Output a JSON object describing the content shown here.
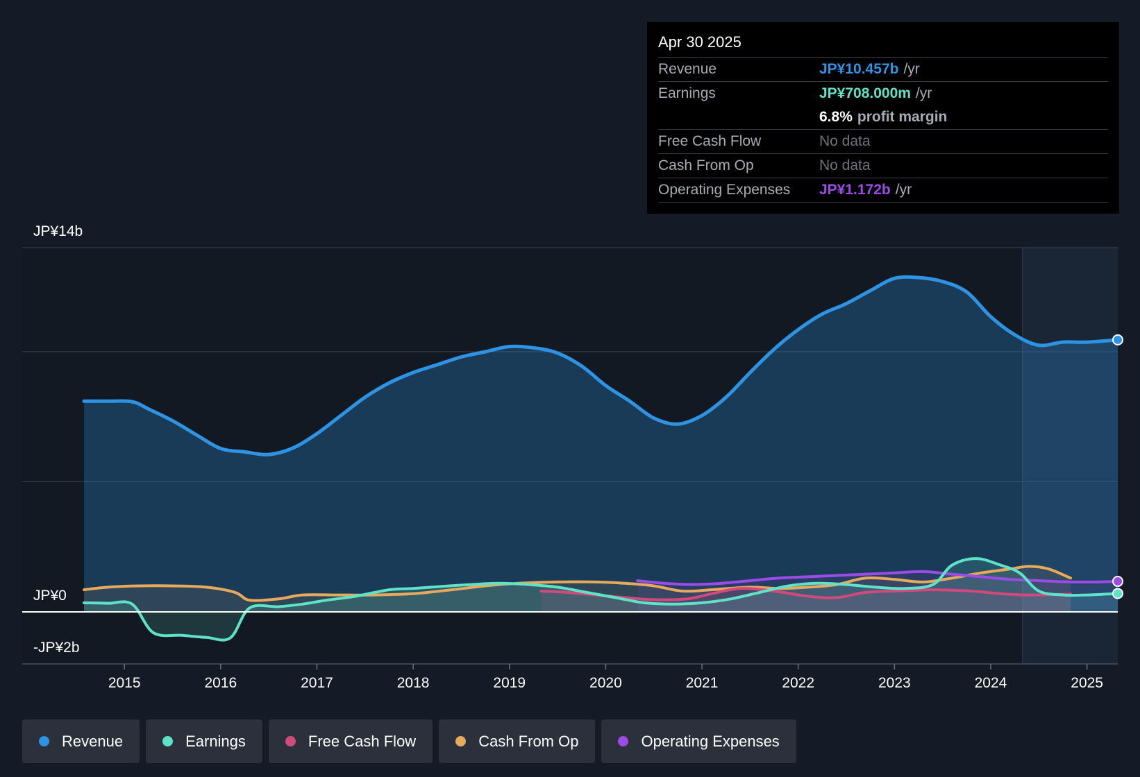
{
  "tooltip": {
    "date": "Apr 30 2025",
    "revenue_label": "Revenue",
    "revenue_value": "JP¥10.457b",
    "revenue_unit": "/yr",
    "earnings_label": "Earnings",
    "earnings_value": "JP¥708.000m",
    "earnings_unit": "/yr",
    "margin_value": "6.8%",
    "margin_text": "profit margin",
    "fcf_label": "Free Cash Flow",
    "fcf_value": "No data",
    "cfo_label": "Cash From Op",
    "cfo_value": "No data",
    "opex_label": "Operating Expenses",
    "opex_value": "JP¥1.172b",
    "opex_unit": "/yr"
  },
  "legend": {
    "revenue": "Revenue",
    "earnings": "Earnings",
    "fcf": "Free Cash Flow",
    "cfo": "Cash From Op",
    "opex": "Operating Expenses"
  },
  "colors": {
    "revenue": "#2e93e3",
    "earnings": "#5fe3c8",
    "fcf": "#d04a7c",
    "cfo": "#e7aa5c",
    "opex": "#9b4be6",
    "background": "#151b26"
  },
  "chart_data": {
    "type": "line",
    "title": "",
    "xlabel": "",
    "ylabel": "",
    "ylim": [
      -2,
      14
    ],
    "xlim": [
      2014.4,
      2025.32
    ],
    "y_tick_labels": [
      {
        "value": 14,
        "label": "JP¥14b"
      },
      {
        "value": 0,
        "label": "JP¥0"
      },
      {
        "value": -2,
        "label": "-JP¥2b"
      }
    ],
    "x_ticks": [
      2015,
      2016,
      2017,
      2018,
      2019,
      2020,
      2021,
      2022,
      2023,
      2024,
      2025
    ],
    "x_tick_labels": [
      "2015",
      "2016",
      "2017",
      "2018",
      "2019",
      "2020",
      "2021",
      "2022",
      "2023",
      "2024",
      "2025"
    ],
    "forecast_start": 2024.33,
    "series": [
      {
        "name": "Revenue",
        "key": "revenue",
        "points": [
          [
            2014.58,
            8.1
          ],
          [
            2014.83,
            8.1
          ],
          [
            2015.08,
            8.08
          ],
          [
            2015.25,
            7.8
          ],
          [
            2015.5,
            7.35
          ],
          [
            2015.75,
            6.8
          ],
          [
            2016.0,
            6.28
          ],
          [
            2016.25,
            6.15
          ],
          [
            2016.5,
            6.05
          ],
          [
            2016.75,
            6.3
          ],
          [
            2017.0,
            6.85
          ],
          [
            2017.25,
            7.55
          ],
          [
            2017.5,
            8.25
          ],
          [
            2017.75,
            8.8
          ],
          [
            2018.0,
            9.2
          ],
          [
            2018.25,
            9.5
          ],
          [
            2018.5,
            9.8
          ],
          [
            2018.75,
            10.0
          ],
          [
            2019.0,
            10.2
          ],
          [
            2019.25,
            10.15
          ],
          [
            2019.5,
            9.95
          ],
          [
            2019.75,
            9.45
          ],
          [
            2020.0,
            8.7
          ],
          [
            2020.25,
            8.1
          ],
          [
            2020.5,
            7.45
          ],
          [
            2020.75,
            7.22
          ],
          [
            2021.0,
            7.55
          ],
          [
            2021.25,
            8.25
          ],
          [
            2021.5,
            9.2
          ],
          [
            2021.75,
            10.1
          ],
          [
            2022.0,
            10.85
          ],
          [
            2022.25,
            11.45
          ],
          [
            2022.5,
            11.85
          ],
          [
            2022.75,
            12.35
          ],
          [
            2023.0,
            12.82
          ],
          [
            2023.25,
            12.85
          ],
          [
            2023.5,
            12.7
          ],
          [
            2023.75,
            12.3
          ],
          [
            2024.0,
            11.35
          ],
          [
            2024.25,
            10.65
          ],
          [
            2024.5,
            10.25
          ],
          [
            2024.75,
            10.37
          ],
          [
            2025.0,
            10.37
          ],
          [
            2025.32,
            10.457
          ]
        ]
      },
      {
        "name": "Earnings",
        "key": "earnings",
        "points": [
          [
            2014.58,
            0.35
          ],
          [
            2014.83,
            0.33
          ],
          [
            2015.08,
            0.3
          ],
          [
            2015.3,
            -0.8
          ],
          [
            2015.6,
            -0.9
          ],
          [
            2015.85,
            -0.98
          ],
          [
            2016.1,
            -1.0
          ],
          [
            2016.3,
            0.15
          ],
          [
            2016.6,
            0.2
          ],
          [
            2016.85,
            0.3
          ],
          [
            2017.1,
            0.45
          ],
          [
            2017.4,
            0.6
          ],
          [
            2017.75,
            0.85
          ],
          [
            2018.0,
            0.9
          ],
          [
            2018.3,
            0.98
          ],
          [
            2018.6,
            1.05
          ],
          [
            2018.9,
            1.1
          ],
          [
            2019.2,
            1.05
          ],
          [
            2019.5,
            0.95
          ],
          [
            2019.8,
            0.75
          ],
          [
            2020.1,
            0.55
          ],
          [
            2020.4,
            0.35
          ],
          [
            2020.7,
            0.3
          ],
          [
            2021.0,
            0.35
          ],
          [
            2021.3,
            0.5
          ],
          [
            2021.6,
            0.75
          ],
          [
            2021.9,
            1.0
          ],
          [
            2022.2,
            1.1
          ],
          [
            2022.5,
            1.05
          ],
          [
            2022.8,
            0.95
          ],
          [
            2023.1,
            0.9
          ],
          [
            2023.4,
            1.05
          ],
          [
            2023.6,
            1.8
          ],
          [
            2023.85,
            2.05
          ],
          [
            2024.1,
            1.8
          ],
          [
            2024.3,
            1.5
          ],
          [
            2024.5,
            0.8
          ],
          [
            2024.75,
            0.65
          ],
          [
            2025.0,
            0.65
          ],
          [
            2025.32,
            0.708
          ]
        ]
      },
      {
        "name": "Free Cash Flow",
        "key": "fcf",
        "points": [
          [
            2019.33,
            0.8
          ],
          [
            2019.6,
            0.75
          ],
          [
            2019.9,
            0.65
          ],
          [
            2020.2,
            0.55
          ],
          [
            2020.5,
            0.47
          ],
          [
            2020.85,
            0.5
          ],
          [
            2021.1,
            0.7
          ],
          [
            2021.4,
            0.9
          ],
          [
            2021.75,
            0.8
          ],
          [
            2022.1,
            0.6
          ],
          [
            2022.4,
            0.55
          ],
          [
            2022.7,
            0.75
          ],
          [
            2023.0,
            0.8
          ],
          [
            2023.4,
            0.85
          ],
          [
            2023.8,
            0.8
          ],
          [
            2024.1,
            0.7
          ],
          [
            2024.4,
            0.65
          ],
          [
            2024.83,
            0.68
          ]
        ]
      },
      {
        "name": "Cash From Op",
        "key": "cfo",
        "points": [
          [
            2014.58,
            0.85
          ],
          [
            2014.83,
            0.95
          ],
          [
            2015.15,
            1.0
          ],
          [
            2015.5,
            1.0
          ],
          [
            2015.85,
            0.95
          ],
          [
            2016.15,
            0.75
          ],
          [
            2016.3,
            0.45
          ],
          [
            2016.6,
            0.5
          ],
          [
            2016.85,
            0.65
          ],
          [
            2017.2,
            0.65
          ],
          [
            2017.6,
            0.65
          ],
          [
            2018.0,
            0.7
          ],
          [
            2018.4,
            0.85
          ],
          [
            2018.75,
            1.0
          ],
          [
            2019.1,
            1.1
          ],
          [
            2019.5,
            1.15
          ],
          [
            2019.9,
            1.15
          ],
          [
            2020.2,
            1.1
          ],
          [
            2020.5,
            1.0
          ],
          [
            2020.8,
            0.8
          ],
          [
            2021.1,
            0.85
          ],
          [
            2021.5,
            0.95
          ],
          [
            2021.8,
            0.9
          ],
          [
            2022.1,
            0.95
          ],
          [
            2022.4,
            1.05
          ],
          [
            2022.7,
            1.3
          ],
          [
            2023.0,
            1.25
          ],
          [
            2023.3,
            1.15
          ],
          [
            2023.6,
            1.3
          ],
          [
            2023.9,
            1.5
          ],
          [
            2024.2,
            1.65
          ],
          [
            2024.4,
            1.75
          ],
          [
            2024.6,
            1.65
          ],
          [
            2024.83,
            1.3
          ]
        ]
      },
      {
        "name": "Operating Expenses",
        "key": "opex",
        "points": [
          [
            2020.33,
            1.2
          ],
          [
            2020.6,
            1.1
          ],
          [
            2020.9,
            1.05
          ],
          [
            2021.2,
            1.1
          ],
          [
            2021.5,
            1.2
          ],
          [
            2021.8,
            1.3
          ],
          [
            2022.1,
            1.35
          ],
          [
            2022.4,
            1.4
          ],
          [
            2022.7,
            1.45
          ],
          [
            2023.0,
            1.5
          ],
          [
            2023.3,
            1.55
          ],
          [
            2023.6,
            1.45
          ],
          [
            2023.9,
            1.35
          ],
          [
            2024.2,
            1.25
          ],
          [
            2024.5,
            1.2
          ],
          [
            2024.83,
            1.15
          ],
          [
            2025.1,
            1.15
          ],
          [
            2025.32,
            1.172
          ]
        ]
      }
    ]
  }
}
